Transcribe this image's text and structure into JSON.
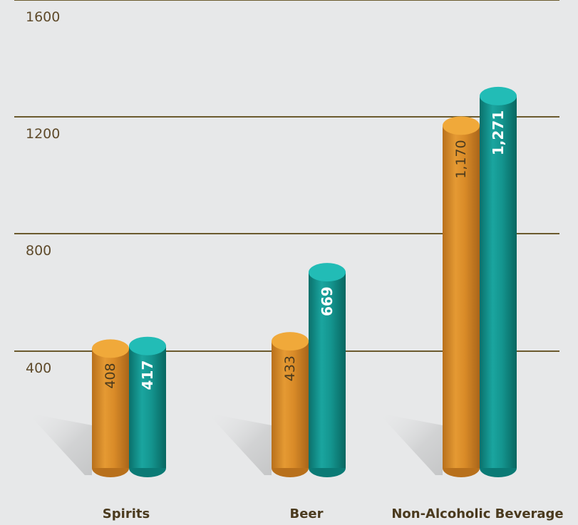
{
  "colors": {
    "background": "#e7e8e9",
    "gridline": "#6b5a2e",
    "orange": "#e0962e",
    "orange_dark": "#b8701c",
    "orange_top": "#f0a93a",
    "teal": "#1a9f9a",
    "teal_dark": "#0b7a75",
    "teal_top": "#22bcb6"
  },
  "chart_data": {
    "type": "bar",
    "style": "3d-cylinder",
    "categories": [
      "Spirits",
      "Beer",
      "Non-Alcoholic Beverage"
    ],
    "series": [
      {
        "color": "orange",
        "values": [
          408,
          433,
          1170
        ],
        "labels": [
          "408",
          "433",
          "1,170"
        ]
      },
      {
        "color": "teal",
        "values": [
          417,
          669,
          1271
        ],
        "labels": [
          "417",
          "669",
          "1,271"
        ]
      }
    ],
    "y_ticks": [
      "400",
      "800",
      "1200",
      "1600"
    ],
    "ylim": [
      0,
      1600
    ],
    "grid": true,
    "legend": "none"
  }
}
